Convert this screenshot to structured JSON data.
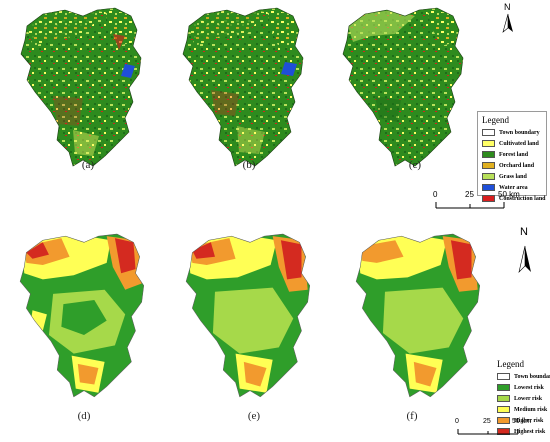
{
  "top_panels": [
    {
      "label": "(a)"
    },
    {
      "label": "(b)"
    },
    {
      "label": "(c)"
    }
  ],
  "bottom_panels": [
    {
      "label": "(d)"
    },
    {
      "label": "(e)"
    },
    {
      "label": "(f)"
    }
  ],
  "landuse_legend": {
    "title": "Legend",
    "items": [
      {
        "label": "Town boundary",
        "color": "#ffffff"
      },
      {
        "label": "Cultivated land",
        "color": "#ffff66"
      },
      {
        "label": "Forest land",
        "color": "#2e8b1e"
      },
      {
        "label": "Orchard land",
        "color": "#e0b020"
      },
      {
        "label": "Grass land",
        "color": "#b8e05a"
      },
      {
        "label": "Water area",
        "color": "#1f4fd8"
      },
      {
        "label": "Construction land",
        "color": "#d81e1e"
      }
    ]
  },
  "risk_legend": {
    "title": "Legend",
    "items": [
      {
        "label": "Town boundary",
        "color": "#ffffff"
      },
      {
        "label": "Lowest risk",
        "color": "#2f9e2a"
      },
      {
        "label": "Lower risk",
        "color": "#a6d94a"
      },
      {
        "label": "Medium risk",
        "color": "#ffff55"
      },
      {
        "label": "Higher risk",
        "color": "#f29a2e"
      },
      {
        "label": "Highest risk",
        "color": "#d42a20"
      }
    ]
  },
  "scale_top": {
    "ticks": [
      "0",
      "25",
      "50 km"
    ]
  },
  "scale_bottom": {
    "ticks": [
      "0",
      "25",
      "50 km"
    ]
  },
  "north_top": {
    "label": "N"
  },
  "north_bottom": {
    "label": "N"
  }
}
